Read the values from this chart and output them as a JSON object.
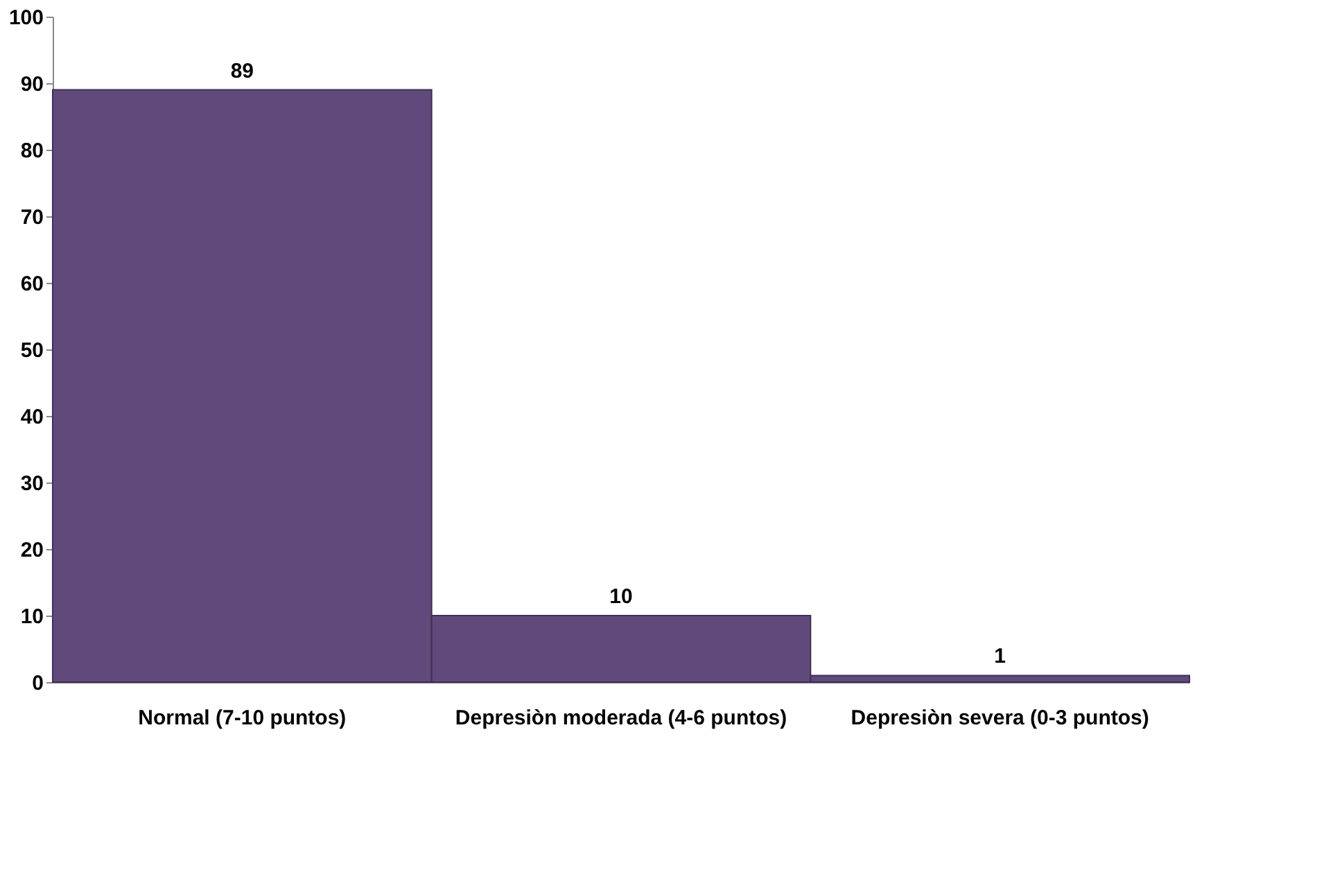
{
  "chart_data": {
    "type": "bar",
    "categories": [
      "Normal (7-10 puntos)",
      "Depresiòn moderada (4-6 puntos)",
      "Depresiòn severa (0-3 puntos)"
    ],
    "values": [
      89,
      10,
      1
    ],
    "color": "#604a7b",
    "ylim": [
      0,
      100
    ],
    "yticks": [
      0,
      10,
      20,
      30,
      40,
      50,
      60,
      70,
      80,
      90,
      100
    ],
    "grid": false,
    "data_labels": true
  }
}
